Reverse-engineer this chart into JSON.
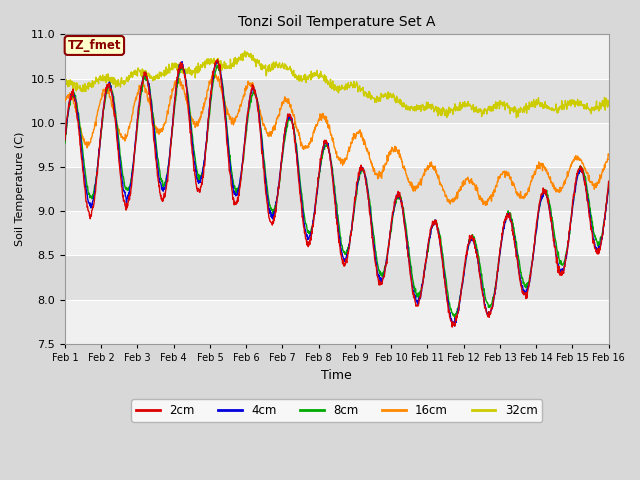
{
  "title": "Tonzi Soil Temperature Set A",
  "xlabel": "Time",
  "ylabel": "Soil Temperature (C)",
  "annotation_text": "TZ_fmet",
  "annotation_bg": "#ffffcc",
  "annotation_border": "#8b0000",
  "annotation_text_color": "#8b0000",
  "ylim": [
    7.5,
    11.0
  ],
  "yticks": [
    7.5,
    8.0,
    8.5,
    9.0,
    9.5,
    10.0,
    10.5,
    11.0
  ],
  "xtick_labels": [
    "Feb 1",
    "Feb 2",
    "Feb 3",
    "Feb 4",
    "Feb 5",
    "Feb 6",
    "Feb 7",
    "Feb 8",
    "Feb 9",
    "Feb 10",
    "Feb 11",
    "Feb 12",
    "Feb 13",
    "Feb 14",
    "Feb 15",
    "Feb 16"
  ],
  "num_days": 15,
  "points_per_day": 96,
  "bg_color": "#d8d8d8",
  "plot_bg_light": "#f0f0f0",
  "plot_bg_dark": "#e0e0e0",
  "grid_color": "#ffffff",
  "colors": {
    "2cm": "#dd0000",
    "4cm": "#0000dd",
    "8cm": "#00aa00",
    "16cm": "#ff8800",
    "32cm": "#cccc00"
  },
  "legend_labels": [
    "2cm",
    "4cm",
    "8cm",
    "16cm",
    "32cm"
  ],
  "figsize": [
    6.4,
    4.8
  ],
  "dpi": 100
}
